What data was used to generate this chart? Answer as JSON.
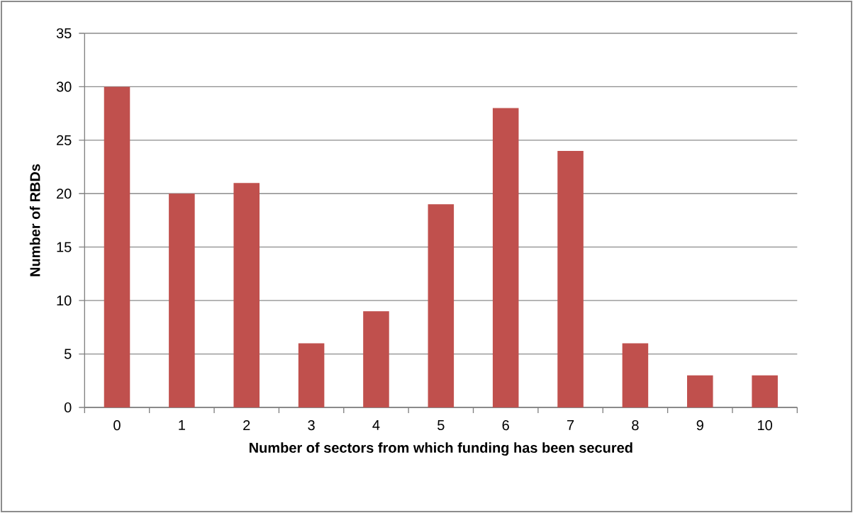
{
  "chart_data": {
    "type": "bar",
    "xlabel": "Number of sectors from which funding has been secured",
    "ylabel": "Number of RBDs",
    "categories": [
      "0",
      "1",
      "2",
      "3",
      "4",
      "5",
      "6",
      "7",
      "8",
      "9",
      "10"
    ],
    "values": [
      30,
      20,
      21,
      6,
      9,
      19,
      28,
      24,
      6,
      3,
      3
    ],
    "color": "#c0504d",
    "ylim": [
      0,
      35
    ],
    "yticks": [
      0,
      5,
      10,
      15,
      20,
      25,
      30,
      35
    ],
    "grid": "y"
  }
}
